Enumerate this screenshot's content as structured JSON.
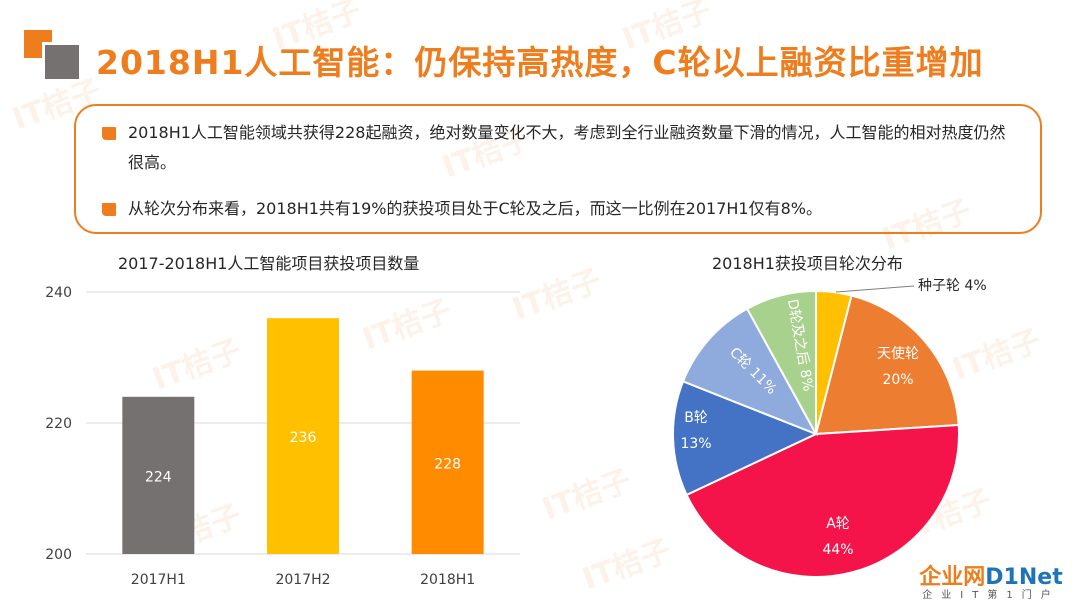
{
  "watermark": "IT桔子",
  "title": "2018H1人工智能：仍保持高热度，C轮以上融资比重增加",
  "bullets": [
    "2018H1人工智能领域共获得228起融资，绝对数量变化不大，考虑到全行业融资数量下滑的情况，人工智能的相对热度仍然很高。",
    "从轮次分布来看，2018H1共有19%的获投项目处于C轮及之后，而这一比例在2017H1仅有8%。"
  ],
  "site_logo": {
    "main_a": "企业网",
    "main_b": "D1Net",
    "sub": "企业IT第1门户"
  },
  "chart_data": [
    {
      "type": "bar",
      "title": "2017-2018H1人工智能项目获投项目数量",
      "categories": [
        "2017H1",
        "2017H2",
        "2018H1"
      ],
      "values": [
        224,
        236,
        228
      ],
      "data_labels": [
        "224",
        "236",
        "228"
      ],
      "ylim": [
        200,
        240
      ],
      "yticks": [
        "200",
        "220",
        "240"
      ],
      "colors": [
        "#767171",
        "#ffc000",
        "#ff8c00"
      ],
      "grid": true,
      "xlabel": "",
      "ylabel": ""
    },
    {
      "type": "pie",
      "title": "2018H1获投项目轮次分布",
      "slices": [
        {
          "label": "种子轮 4%",
          "value": 4,
          "color": "#ffc000"
        },
        {
          "label": "天使轮\n20%",
          "value": 20,
          "color": "#ed7d31"
        },
        {
          "label": "A轮\n44%",
          "value": 44,
          "color": "#f5144a"
        },
        {
          "label": "B轮\n13%",
          "value": 13,
          "color": "#4472c4"
        },
        {
          "label": "C轮 11%",
          "value": 11,
          "color": "#8faadc"
        },
        {
          "label": "D轮及之后 8%",
          "value": 8,
          "color": "#a9d18e"
        }
      ]
    }
  ]
}
